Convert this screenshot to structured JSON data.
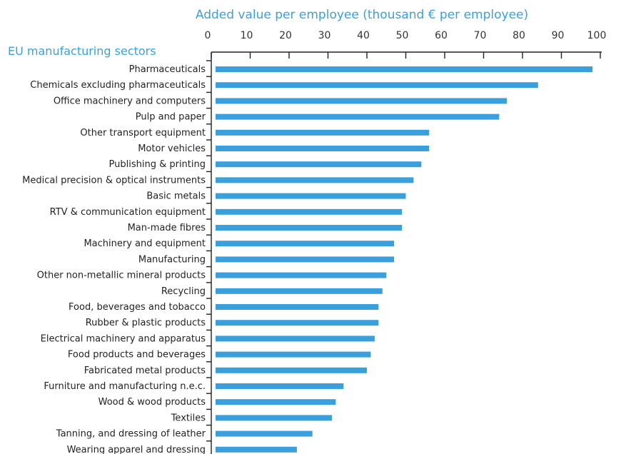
{
  "chart_data": {
    "type": "bar",
    "orientation": "horizontal",
    "title": "Added value per employee (thousand € per employee)",
    "ylabel": "EU manufacturing sectors",
    "xlabel": "Added value per employee (thousand € per employee)",
    "xlim": [
      0,
      100
    ],
    "xticks": [
      0,
      10,
      20,
      30,
      40,
      50,
      60,
      70,
      80,
      90,
      100
    ],
    "x_axis_position": "top",
    "grid": false,
    "bar_color": "#3aa0dd",
    "title_color": "#3aa0dd",
    "categories": [
      "Pharmaceuticals",
      "Chemicals excluding pharmaceuticals",
      "Office machinery and computers",
      "Pulp and paper",
      "Other transport equipment",
      "Motor vehicles",
      "Publishing & printing",
      "Medical precision & optical instruments",
      "Basic metals",
      "RTV & communication equipment",
      "Man-made fibres",
      "Machinery and equipment",
      "Manufacturing",
      "Other non-metallic mineral products",
      "Recycling",
      "Food, beverages and tobacco",
      "Rubber & plastic products",
      "Electrical machinery and apparatus",
      "Food products and beverages",
      "Fabricated metal products",
      "Furniture and manufacturing n.e.c.",
      "Wood & wood products",
      "Textiles",
      "Tanning, and dressing of leather",
      "Wearing apparel and dressing"
    ],
    "values": [
      98,
      84,
      76,
      74,
      56,
      56,
      54,
      52,
      50,
      49,
      49,
      47,
      47,
      45,
      44,
      43,
      43,
      42,
      41,
      40,
      34,
      32,
      31,
      26,
      22
    ]
  }
}
